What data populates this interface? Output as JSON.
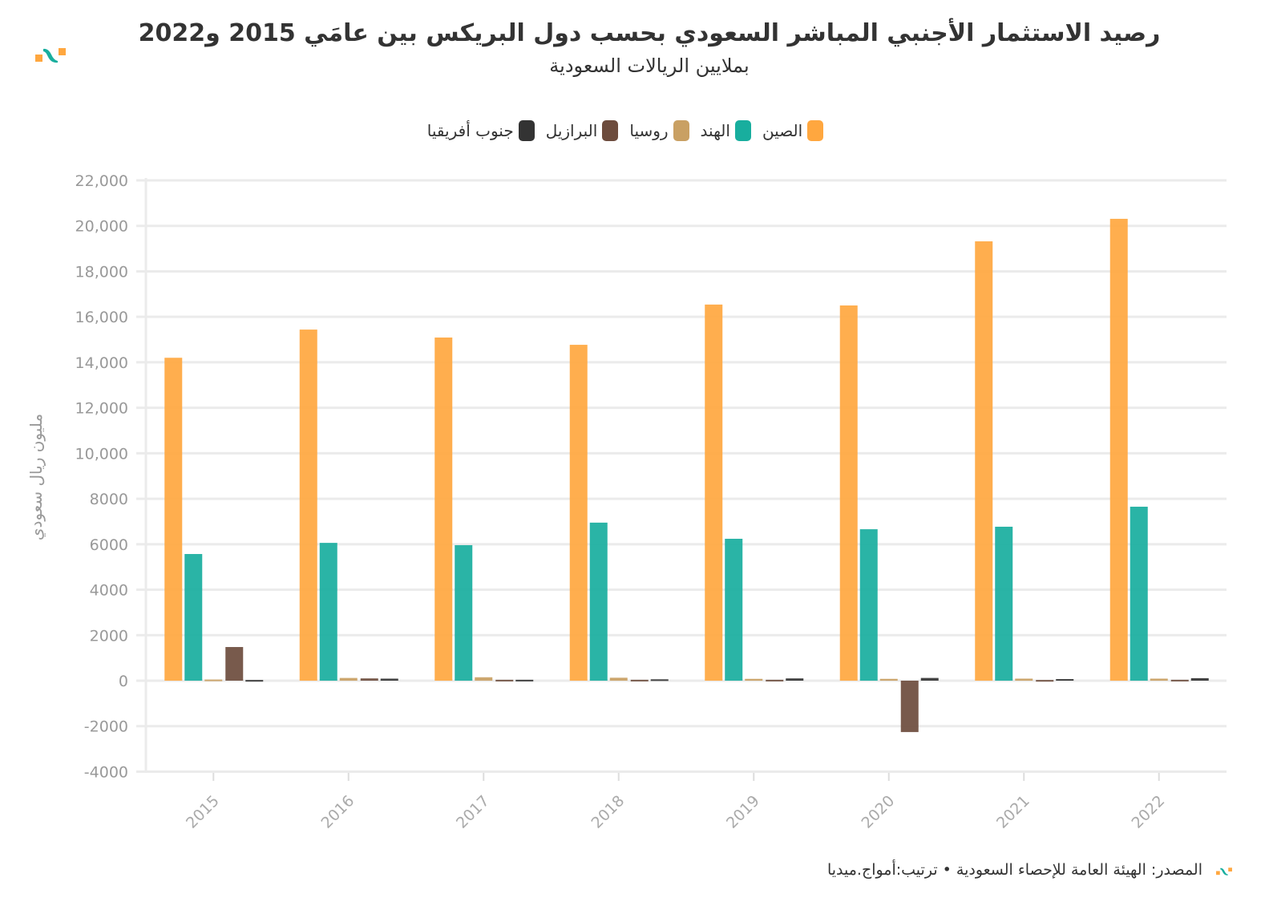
{
  "title": "رصيد الاستثمار الأجنبي المباشر السعودي بحسب دول البريكس بين عامَي 2015 و2022",
  "subtitle": "بملايين الريالات السعودية",
  "footer": "المصدر: الهيئة العامة للإحصاء السعودية • ترتيب:أمواج.ميديا",
  "chart_data": {
    "type": "bar",
    "categories": [
      "2015",
      "2016",
      "2017",
      "2018",
      "2019",
      "2020",
      "2021",
      "2022"
    ],
    "ylabel": "مليون ريال سعودي",
    "ylim": [
      -4000,
      22000
    ],
    "yticks": [
      -4000,
      -2000,
      0,
      2000,
      4000,
      6000,
      8000,
      10000,
      12000,
      14000,
      16000,
      18000,
      20000,
      22000
    ],
    "ytick_labels": [
      "-4000",
      "-2000",
      "0",
      "2000",
      "4000",
      "6000",
      "8000",
      "10,000",
      "12,000",
      "14,000",
      "16,000",
      "18,000",
      "20,000",
      "22,000"
    ],
    "grid": true,
    "legend_position": "top",
    "series": [
      {
        "name": "الصين",
        "color": "#ffa73f",
        "values": [
          14200,
          15440,
          15090,
          14770,
          16540,
          16500,
          19320,
          20310
        ]
      },
      {
        "name": "الهند",
        "color": "#18ae9e",
        "values": [
          5570,
          6060,
          5960,
          6950,
          6240,
          6660,
          6770,
          7650
        ]
      },
      {
        "name": "روسيا",
        "color": "#c9a063",
        "values": [
          50,
          120,
          150,
          130,
          80,
          80,
          90,
          90
        ]
      },
      {
        "name": "البرازيل",
        "color": "#6d4c3d",
        "values": [
          1480,
          100,
          40,
          40,
          40,
          -2260,
          30,
          40
        ]
      },
      {
        "name": "جنوب أفريقيا",
        "color": "#333333",
        "values": [
          30,
          90,
          40,
          60,
          100,
          120,
          70,
          110
        ]
      }
    ]
  }
}
